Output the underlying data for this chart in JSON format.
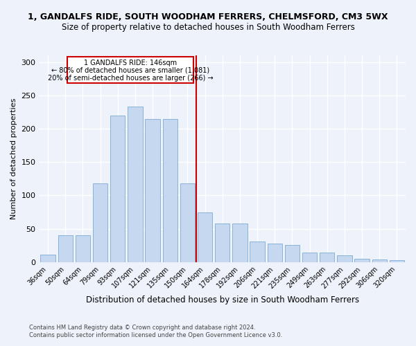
{
  "title": "1, GANDALFS RIDE, SOUTH WOODHAM FERRERS, CHELMSFORD, CM3 5WX",
  "subtitle": "Size of property relative to detached houses in South Woodham Ferrers",
  "xlabel": "Distribution of detached houses by size in South Woodham Ferrers",
  "ylabel": "Number of detached properties",
  "footer1": "Contains HM Land Registry data © Crown copyright and database right 2024.",
  "footer2": "Contains public sector information licensed under the Open Government Licence v3.0.",
  "categories": [
    "36sqm",
    "50sqm",
    "64sqm",
    "79sqm",
    "93sqm",
    "107sqm",
    "121sqm",
    "135sqm",
    "150sqm",
    "164sqm",
    "178sqm",
    "192sqm",
    "206sqm",
    "221sqm",
    "235sqm",
    "249sqm",
    "263sqm",
    "277sqm",
    "292sqm",
    "306sqm",
    "320sqm"
  ],
  "values": [
    11,
    40,
    40,
    118,
    220,
    233,
    215,
    215,
    118,
    74,
    58,
    58,
    31,
    28,
    26,
    14,
    14,
    10,
    5,
    4,
    3
  ],
  "bar_color": "#c5d8f0",
  "bar_edge_color": "#7baad4",
  "vline_color": "#cc0000",
  "annotation_line1": "1 GANDALFS RIDE: 146sqm",
  "annotation_line2": "← 80% of detached houses are smaller (1,081)",
  "annotation_line3": "20% of semi-detached houses are larger (266) →",
  "box_color": "#cc0000",
  "ylim": [
    0,
    310
  ],
  "yticks": [
    0,
    50,
    100,
    150,
    200,
    250,
    300
  ],
  "bg_color": "#eef2fa",
  "grid_color": "#ffffff",
  "title_fontsize": 9,
  "subtitle_fontsize": 8.5,
  "xlabel_fontsize": 8.5,
  "ylabel_fontsize": 8
}
